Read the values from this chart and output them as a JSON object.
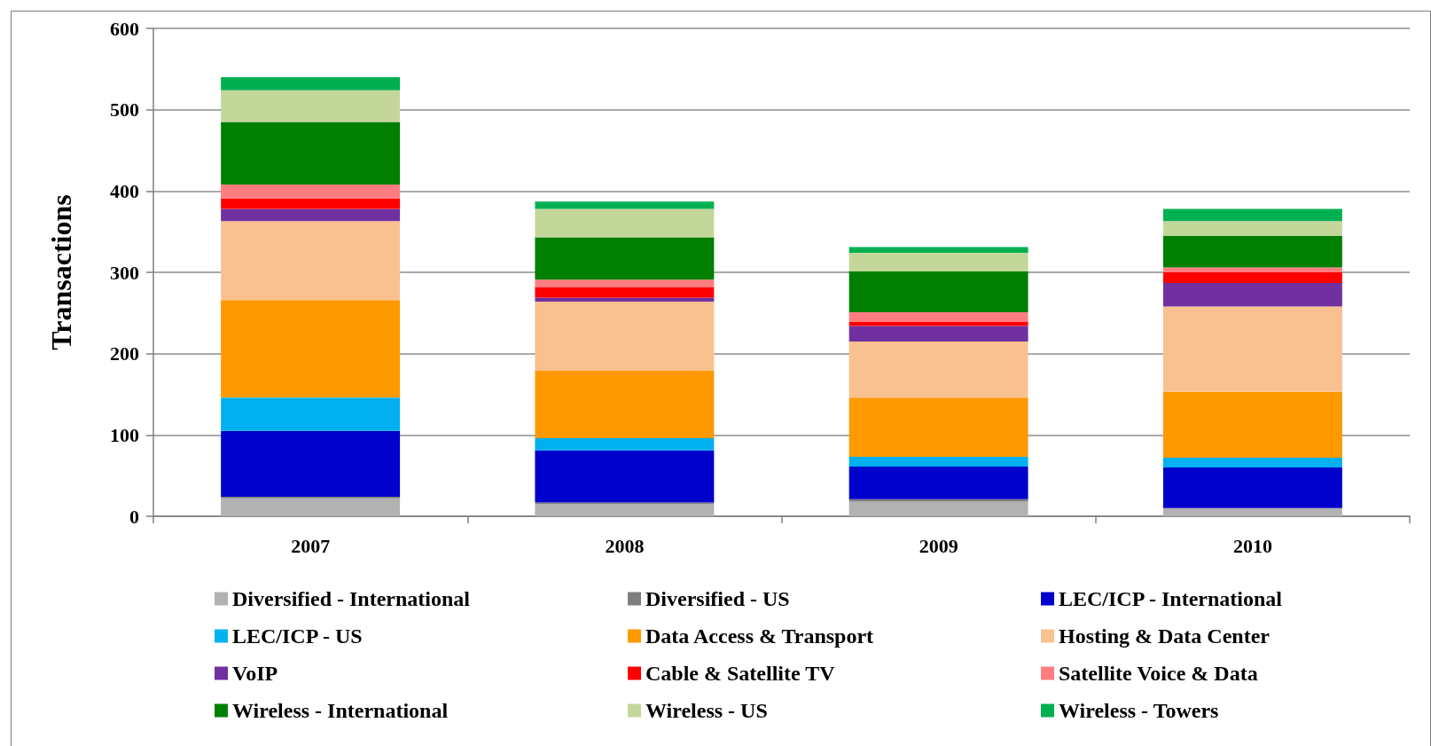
{
  "chart_data": {
    "type": "bar",
    "stacked": true,
    "ylabel": "Transactions",
    "categories": [
      "2007",
      "2008",
      "2009",
      "2010"
    ],
    "ylim": [
      0,
      600
    ],
    "yticks": [
      0,
      100,
      200,
      300,
      400,
      500,
      600
    ],
    "grid": "y",
    "legend": "bottom",
    "series": [
      {
        "name": "Diversified - International",
        "color": "#b2b2b2",
        "values": [
          22,
          15,
          18,
          10
        ]
      },
      {
        "name": "Diversified - US",
        "color": "#7f7f7f",
        "values": [
          2,
          2,
          3,
          0
        ]
      },
      {
        "name": "LEC/ICP - International",
        "color": "#0000cc",
        "values": [
          81,
          64,
          40,
          50
        ]
      },
      {
        "name": "LEC/ICP - US",
        "color": "#00b0f0",
        "values": [
          41,
          15,
          12,
          12
        ]
      },
      {
        "name": "Data Access & Transport",
        "color": "#ff9900",
        "values": [
          120,
          83,
          73,
          81
        ]
      },
      {
        "name": "Hosting & Data Center",
        "color": "#f9c090",
        "values": [
          97,
          85,
          69,
          105
        ]
      },
      {
        "name": "VoIP",
        "color": "#7030a0",
        "values": [
          15,
          5,
          19,
          29
        ]
      },
      {
        "name": "Cable & Satellite TV",
        "color": "#ff0000",
        "values": [
          13,
          13,
          5,
          13
        ]
      },
      {
        "name": "Satellite Voice & Data",
        "color": "#ff7c80",
        "values": [
          17,
          9,
          12,
          6
        ]
      },
      {
        "name": "Wireless - International",
        "color": "#007f00",
        "values": [
          77,
          52,
          50,
          39
        ]
      },
      {
        "name": "Wireless - US",
        "color": "#c4d79b",
        "values": [
          39,
          35,
          23,
          18
        ]
      },
      {
        "name": "Wireless - Towers",
        "color": "#00b050",
        "values": [
          16,
          9,
          7,
          15
        ]
      }
    ]
  }
}
